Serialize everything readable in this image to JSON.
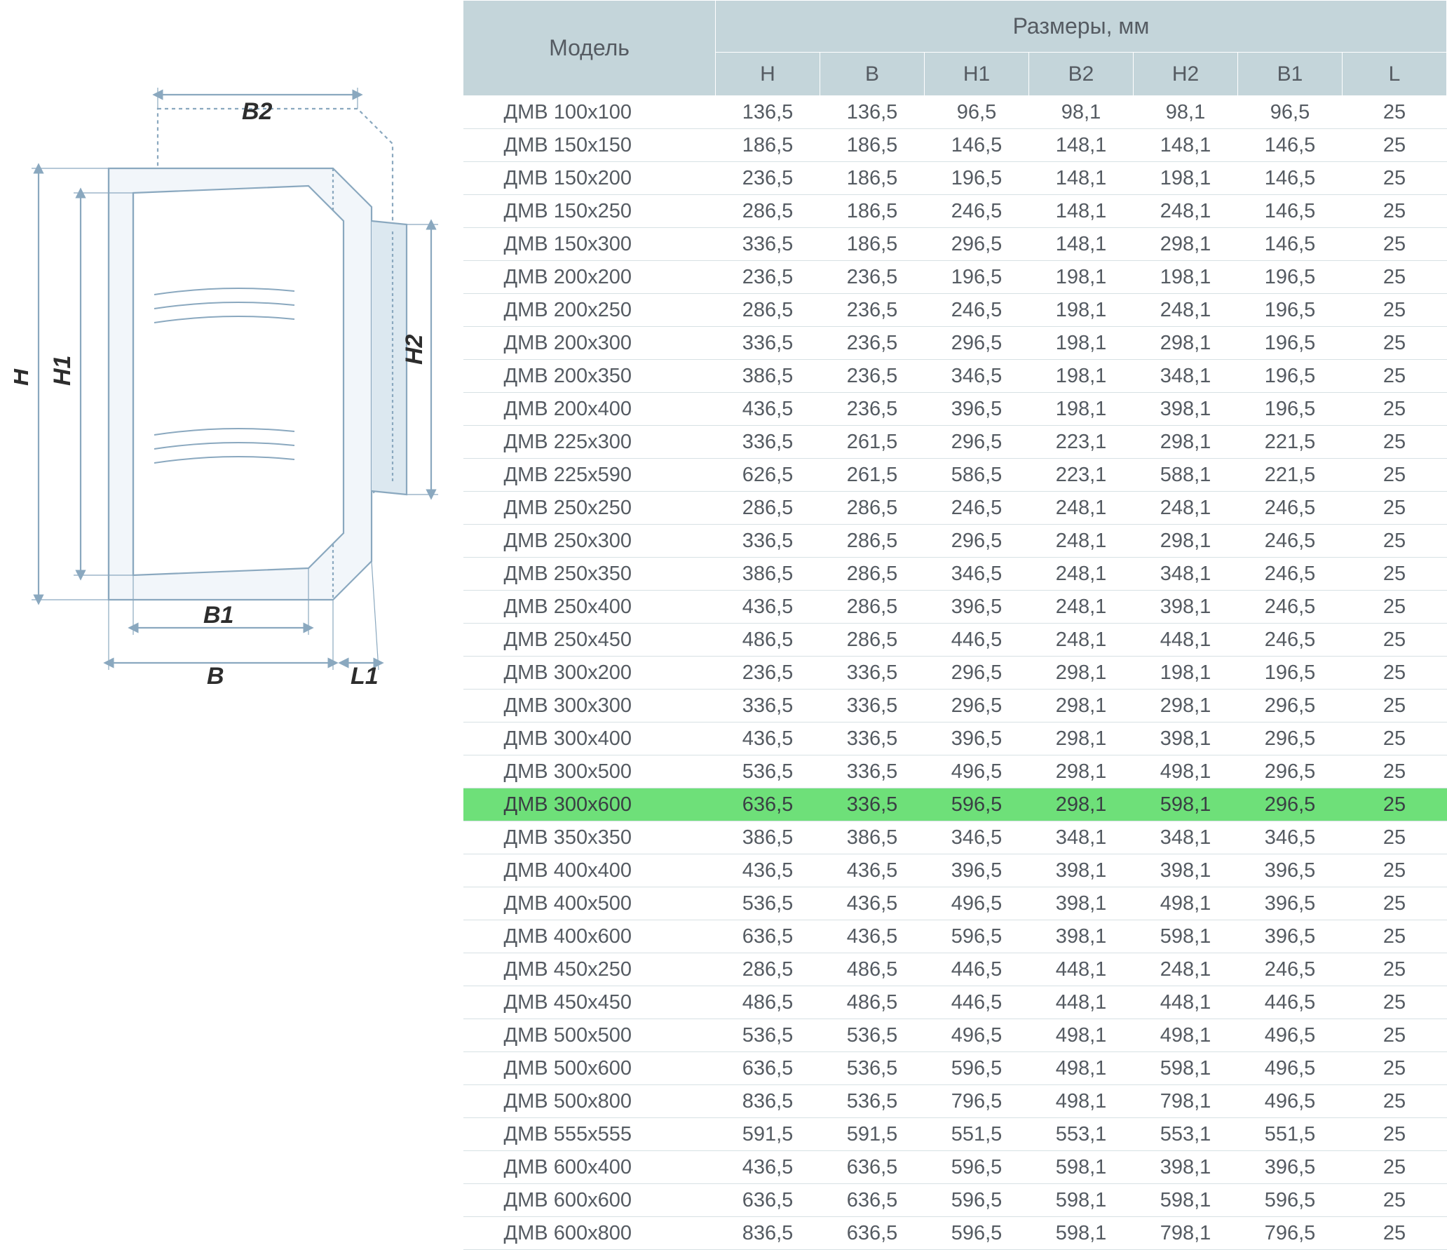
{
  "diagram": {
    "labels": {
      "H": "H",
      "H1": "H1",
      "H2": "H2",
      "B": "B",
      "B1": "B1",
      "B2": "B2",
      "L1": "L1"
    },
    "line_color": "#8aa8bf",
    "fill_light": "#f2f6fa",
    "fill_mid": "#dce8f0",
    "dash": "4 4"
  },
  "table": {
    "header_bg": "#c4d5da",
    "header_text_color": "#5a6066",
    "row_border_color": "#d7e1e4",
    "highlight_bg": "#6ee079",
    "body_text_color": "#555b62",
    "header_fontsize": 32,
    "subheader_fontsize": 30,
    "cell_fontsize": 29,
    "model_header": "Модель",
    "dims_header": "Размеры, мм",
    "columns": [
      "H",
      "B",
      "H1",
      "B2",
      "H2",
      "B1",
      "L"
    ],
    "highlight_index": 21,
    "rows": [
      [
        "ДМВ 100х100",
        "136,5",
        "136,5",
        "96,5",
        "98,1",
        "98,1",
        "96,5",
        "25"
      ],
      [
        "ДМВ 150х150",
        "186,5",
        "186,5",
        "146,5",
        "148,1",
        "148,1",
        "146,5",
        "25"
      ],
      [
        "ДМВ 150х200",
        "236,5",
        "186,5",
        "196,5",
        "148,1",
        "198,1",
        "146,5",
        "25"
      ],
      [
        "ДМВ 150х250",
        "286,5",
        "186,5",
        "246,5",
        "148,1",
        "248,1",
        "146,5",
        "25"
      ],
      [
        "ДМВ 150х300",
        "336,5",
        "186,5",
        "296,5",
        "148,1",
        "298,1",
        "146,5",
        "25"
      ],
      [
        "ДМВ 200х200",
        "236,5",
        "236,5",
        "196,5",
        "198,1",
        "198,1",
        "196,5",
        "25"
      ],
      [
        "ДМВ 200х250",
        "286,5",
        "236,5",
        "246,5",
        "198,1",
        "248,1",
        "196,5",
        "25"
      ],
      [
        "ДМВ 200х300",
        "336,5",
        "236,5",
        "296,5",
        "198,1",
        "298,1",
        "196,5",
        "25"
      ],
      [
        "ДМВ 200х350",
        "386,5",
        "236,5",
        "346,5",
        "198,1",
        "348,1",
        "196,5",
        "25"
      ],
      [
        "ДМВ 200х400",
        "436,5",
        "236,5",
        "396,5",
        "198,1",
        "398,1",
        "196,5",
        "25"
      ],
      [
        "ДМВ 225х300",
        "336,5",
        "261,5",
        "296,5",
        "223,1",
        "298,1",
        "221,5",
        "25"
      ],
      [
        "ДМВ 225х590",
        "626,5",
        "261,5",
        "586,5",
        "223,1",
        "588,1",
        "221,5",
        "25"
      ],
      [
        "ДМВ 250х250",
        "286,5",
        "286,5",
        "246,5",
        "248,1",
        "248,1",
        "246,5",
        "25"
      ],
      [
        "ДМВ 250х300",
        "336,5",
        "286,5",
        "296,5",
        "248,1",
        "298,1",
        "246,5",
        "25"
      ],
      [
        "ДМВ 250х350",
        "386,5",
        "286,5",
        "346,5",
        "248,1",
        "348,1",
        "246,5",
        "25"
      ],
      [
        "ДМВ 250х400",
        "436,5",
        "286,5",
        "396,5",
        "248,1",
        "398,1",
        "246,5",
        "25"
      ],
      [
        "ДМВ 250х450",
        "486,5",
        "286,5",
        "446,5",
        "248,1",
        "448,1",
        "246,5",
        "25"
      ],
      [
        "ДМВ 300х200",
        "236,5",
        "336,5",
        "296,5",
        "298,1",
        "198,1",
        "196,5",
        "25"
      ],
      [
        "ДМВ 300х300",
        "336,5",
        "336,5",
        "296,5",
        "298,1",
        "298,1",
        "296,5",
        "25"
      ],
      [
        "ДМВ 300х400",
        "436,5",
        "336,5",
        "396,5",
        "298,1",
        "398,1",
        "296,5",
        "25"
      ],
      [
        "ДМВ 300х500",
        "536,5",
        "336,5",
        "496,5",
        "298,1",
        "498,1",
        "296,5",
        "25"
      ],
      [
        "ДМВ 300х600",
        "636,5",
        "336,5",
        "596,5",
        "298,1",
        "598,1",
        "296,5",
        "25"
      ],
      [
        "ДМВ 350х350",
        "386,5",
        "386,5",
        "346,5",
        "348,1",
        "348,1",
        "346,5",
        "25"
      ],
      [
        "ДМВ 400х400",
        "436,5",
        "436,5",
        "396,5",
        "398,1",
        "398,1",
        "396,5",
        "25"
      ],
      [
        "ДМВ 400х500",
        "536,5",
        "436,5",
        "496,5",
        "398,1",
        "498,1",
        "396,5",
        "25"
      ],
      [
        "ДМВ 400х600",
        "636,5",
        "436,5",
        "596,5",
        "398,1",
        "598,1",
        "396,5",
        "25"
      ],
      [
        "ДМВ 450х250",
        "286,5",
        "486,5",
        "446,5",
        "448,1",
        "248,1",
        "246,5",
        "25"
      ],
      [
        "ДМВ 450х450",
        "486,5",
        "486,5",
        "446,5",
        "448,1",
        "448,1",
        "446,5",
        "25"
      ],
      [
        "ДМВ 500х500",
        "536,5",
        "536,5",
        "496,5",
        "498,1",
        "498,1",
        "496,5",
        "25"
      ],
      [
        "ДМВ 500х600",
        "636,5",
        "536,5",
        "596,5",
        "498,1",
        "598,1",
        "496,5",
        "25"
      ],
      [
        "ДМВ 500х800",
        "836,5",
        "536,5",
        "796,5",
        "498,1",
        "798,1",
        "496,5",
        "25"
      ],
      [
        "ДМВ 555х555",
        "591,5",
        "591,5",
        "551,5",
        "553,1",
        "553,1",
        "551,5",
        "25"
      ],
      [
        "ДМВ 600х400",
        "436,5",
        "636,5",
        "596,5",
        "598,1",
        "398,1",
        "396,5",
        "25"
      ],
      [
        "ДМВ 600х600",
        "636,5",
        "636,5",
        "596,5",
        "598,1",
        "598,1",
        "596,5",
        "25"
      ],
      [
        "ДМВ 600х800",
        "836,5",
        "636,5",
        "596,5",
        "598,1",
        "798,1",
        "796,5",
        "25"
      ]
    ]
  }
}
